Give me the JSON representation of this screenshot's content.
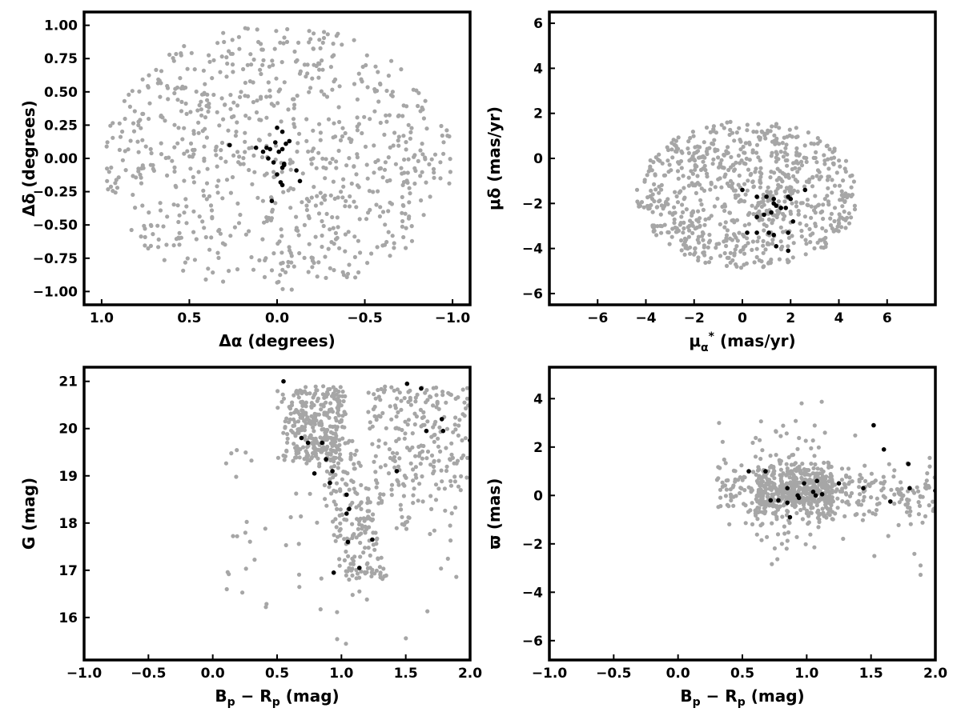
{
  "colors": {
    "field": "#a6a6a6",
    "members": "#000000",
    "axes": "#000000"
  },
  "chart_data": [
    {
      "type": "scatter",
      "panel": "top-left",
      "xlabel": "Δα (degrees)",
      "ylabel": "Δδ (degrees)",
      "xlim": [
        1.1,
        -1.1
      ],
      "ylim": [
        -1.1,
        1.1
      ],
      "x_inverted": true,
      "xticks": [
        1.0,
        0.5,
        0.0,
        -0.5,
        -1.0
      ],
      "xtick_labels": [
        "1.0",
        "0.5",
        "0.0",
        "−0.5",
        "−1.0"
      ],
      "yticks": [
        -1.0,
        -0.75,
        -0.5,
        -0.25,
        0.0,
        0.25,
        0.5,
        0.75,
        1.0
      ],
      "ytick_labels": [
        "−1.00",
        "−0.75",
        "−0.50",
        "−0.25",
        "0.00",
        "0.25",
        "0.50",
        "0.75",
        "1.00"
      ],
      "grid": false,
      "field_stars": {
        "count": 800,
        "distribution": "uniform disk",
        "center": [
          0,
          0
        ],
        "rx": 1.0,
        "ry": 1.0
      },
      "members": [
        [
          0.0,
          0.23
        ],
        [
          -0.03,
          0.2
        ],
        [
          0.01,
          0.12
        ],
        [
          -0.07,
          0.13
        ],
        [
          -0.05,
          0.11
        ],
        [
          0.06,
          0.08
        ],
        [
          0.04,
          0.07
        ],
        [
          0.27,
          0.1
        ],
        [
          0.12,
          0.08
        ],
        [
          0.08,
          0.05
        ],
        [
          -0.01,
          0.05
        ],
        [
          -0.03,
          0.07
        ],
        [
          0.05,
          0.0
        ],
        [
          0.02,
          -0.03
        ],
        [
          -0.04,
          -0.04
        ],
        [
          -0.04,
          -0.05
        ],
        [
          -0.03,
          -0.07
        ],
        [
          -0.11,
          -0.09
        ],
        [
          0.0,
          -0.12
        ],
        [
          -0.13,
          -0.17
        ],
        [
          -0.02,
          -0.18
        ],
        [
          -0.03,
          -0.2
        ],
        [
          0.03,
          -0.32
        ]
      ]
    },
    {
      "type": "scatter",
      "panel": "top-right",
      "xlabel": "μα* (mas/yr)",
      "ylabel": "μδ (mas/yr)",
      "xlim": [
        -8,
        8
      ],
      "ylim": [
        -6.5,
        6.5
      ],
      "xticks": [
        -6,
        -4,
        -2,
        0,
        2,
        4,
        6
      ],
      "xtick_labels": [
        "−6",
        "−4",
        "−2",
        "0",
        "2",
        "4",
        "6"
      ],
      "yticks": [
        -6,
        -4,
        -2,
        0,
        2,
        4,
        6
      ],
      "ytick_labels": [
        "−6",
        "−4",
        "−2",
        "0",
        "2",
        "4",
        "6"
      ],
      "grid": false,
      "field_stars": {
        "count": 800,
        "distribution": "ellipse",
        "center": [
          0.2,
          -1.6
        ],
        "rx": 4.6,
        "ry": 3.3
      },
      "members": [
        [
          0.0,
          -1.4
        ],
        [
          0.6,
          -1.7
        ],
        [
          1.0,
          -1.7
        ],
        [
          1.3,
          -1.8
        ],
        [
          1.9,
          -1.7
        ],
        [
          2.0,
          -1.8
        ],
        [
          2.6,
          -1.4
        ],
        [
          1.3,
          -2.0
        ],
        [
          1.6,
          -2.2
        ],
        [
          1.4,
          -2.1
        ],
        [
          1.8,
          -2.2
        ],
        [
          0.9,
          -2.5
        ],
        [
          1.2,
          -2.4
        ],
        [
          0.6,
          -2.6
        ],
        [
          2.1,
          -2.8
        ],
        [
          0.6,
          -3.3
        ],
        [
          0.2,
          -3.3
        ],
        [
          1.1,
          -3.3
        ],
        [
          1.3,
          -3.4
        ],
        [
          1.9,
          -3.3
        ],
        [
          1.4,
          -3.9
        ],
        [
          1.9,
          -4.1
        ]
      ]
    },
    {
      "type": "scatter",
      "panel": "bottom-left",
      "xlabel": "Bp − Rp (mag)",
      "ylabel": "G (mag)",
      "xlim": [
        -1.0,
        2.0
      ],
      "ylim": [
        15.1,
        21.3
      ],
      "xticks": [
        -1.0,
        -0.5,
        0.0,
        0.5,
        1.0,
        1.5,
        2.0
      ],
      "xtick_labels": [
        "−1.0",
        "−0.5",
        "0.0",
        "0.5",
        "1.0",
        "1.5",
        "2.0"
      ],
      "yticks": [
        16,
        17,
        18,
        19,
        20,
        21
      ],
      "ytick_labels": [
        "16",
        "17",
        "18",
        "19",
        "20",
        "21"
      ],
      "grid": false,
      "field_stars": {
        "count": 800,
        "distribution": "color-magnitude"
      },
      "members": [
        [
          0.55,
          21.0
        ],
        [
          1.51,
          20.95
        ],
        [
          1.62,
          20.85
        ],
        [
          1.78,
          20.2
        ],
        [
          1.66,
          19.95
        ],
        [
          1.79,
          19.95
        ],
        [
          0.69,
          19.8
        ],
        [
          0.74,
          19.7
        ],
        [
          0.85,
          19.7
        ],
        [
          2.0,
          19.75
        ],
        [
          0.88,
          19.35
        ],
        [
          0.79,
          19.05
        ],
        [
          0.93,
          19.1
        ],
        [
          0.91,
          18.85
        ],
        [
          1.04,
          18.6
        ],
        [
          1.06,
          18.3
        ],
        [
          1.04,
          18.2
        ],
        [
          1.43,
          19.1
        ],
        [
          1.24,
          17.65
        ],
        [
          1.05,
          17.6
        ],
        [
          1.14,
          17.05
        ],
        [
          0.94,
          16.95
        ]
      ]
    },
    {
      "type": "scatter",
      "panel": "bottom-right",
      "xlabel": "Bp − Rp (mag)",
      "ylabel": "ϖ (mas)",
      "xlim": [
        -1.0,
        2.0
      ],
      "ylim": [
        -6.8,
        5.3
      ],
      "xticks": [
        -1.0,
        -0.5,
        0.0,
        0.5,
        1.0,
        1.5,
        2.0
      ],
      "xtick_labels": [
        "−1.0",
        "−0.5",
        "0.0",
        "0.5",
        "1.0",
        "1.5",
        "2.0"
      ],
      "yticks": [
        -6,
        -4,
        -2,
        0,
        2,
        4
      ],
      "ytick_labels": [
        "−6",
        "−4",
        "−2",
        "0",
        "2",
        "4"
      ],
      "grid": false,
      "field_stars": {
        "count": 800,
        "distribution": "parallax-color"
      },
      "members": [
        [
          1.52,
          2.9
        ],
        [
          1.6,
          1.9
        ],
        [
          0.55,
          1.0
        ],
        [
          0.68,
          1.0
        ],
        [
          1.79,
          1.3
        ],
        [
          0.98,
          0.5
        ],
        [
          1.08,
          0.6
        ],
        [
          1.25,
          0.5
        ],
        [
          0.85,
          0.3
        ],
        [
          1.05,
          0.15
        ],
        [
          1.12,
          0.05
        ],
        [
          1.07,
          0.0
        ],
        [
          0.93,
          0.0
        ],
        [
          0.94,
          -0.1
        ],
        [
          0.72,
          -0.2
        ],
        [
          0.78,
          -0.2
        ],
        [
          0.85,
          -0.3
        ],
        [
          1.65,
          -0.25
        ],
        [
          1.44,
          0.3
        ],
        [
          1.8,
          0.3
        ],
        [
          2.0,
          0.2
        ],
        [
          0.87,
          -0.9
        ]
      ]
    }
  ]
}
